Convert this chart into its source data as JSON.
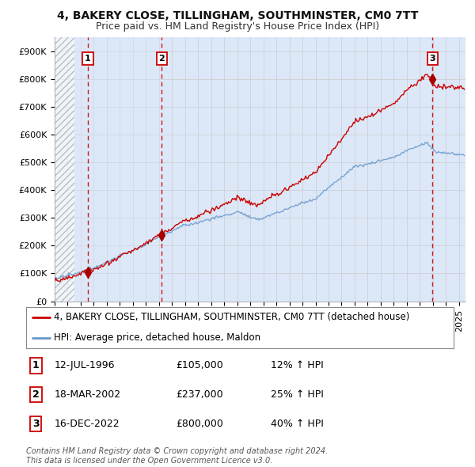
{
  "title": "4, BAKERY CLOSE, TILLINGHAM, SOUTHMINSTER, CM0 7TT",
  "subtitle": "Price paid vs. HM Land Registry's House Price Index (HPI)",
  "ylabel_ticks": [
    "£0",
    "£100K",
    "£200K",
    "£300K",
    "£400K",
    "£500K",
    "£600K",
    "£700K",
    "£800K",
    "£900K"
  ],
  "ytick_values": [
    0,
    100000,
    200000,
    300000,
    400000,
    500000,
    600000,
    700000,
    800000,
    900000
  ],
  "ylim": [
    0,
    950000
  ],
  "xlim_start": 1994.0,
  "xlim_end": 2025.5,
  "hatch_start": 1994.0,
  "hatch_end": 1995.5,
  "grid_color": "#cccccc",
  "bg_color": "#dce8f8",
  "plot_bg": "#ffffff",
  "sale_dates": [
    1996.54,
    2002.21,
    2022.96
  ],
  "sale_prices": [
    105000,
    237000,
    800000
  ],
  "sale_labels": [
    "1",
    "2",
    "3"
  ],
  "dashed_line_color": "#cc0000",
  "sale_dot_color": "#aa0000",
  "red_line_color": "#cc0000",
  "blue_line_color": "#6699cc",
  "legend_line1": "4, BAKERY CLOSE, TILLINGHAM, SOUTHMINSTER, CM0 7TT (detached house)",
  "legend_line2": "HPI: Average price, detached house, Maldon",
  "table_entries": [
    {
      "label": "1",
      "date": "12-JUL-1996",
      "price": "£105,000",
      "hpi": "12% ↑ HPI"
    },
    {
      "label": "2",
      "date": "18-MAR-2002",
      "price": "£237,000",
      "hpi": "25% ↑ HPI"
    },
    {
      "label": "3",
      "date": "16-DEC-2022",
      "price": "£800,000",
      "hpi": "40% ↑ HPI"
    }
  ],
  "footer": "Contains HM Land Registry data © Crown copyright and database right 2024.\nThis data is licensed under the Open Government Licence v3.0.",
  "title_fontsize": 10,
  "subtitle_fontsize": 9,
  "tick_fontsize": 8,
  "legend_fontsize": 8.5,
  "table_fontsize": 9,
  "footer_fontsize": 7
}
